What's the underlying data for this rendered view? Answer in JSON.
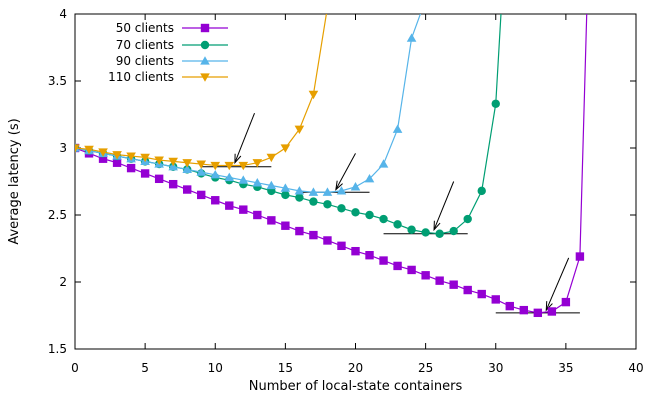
{
  "chart_data": {
    "type": "line",
    "xlabel": "Number of local-state containers",
    "ylabel": "Average latency (s)",
    "xlim": [
      0,
      40
    ],
    "ylim": [
      1.5,
      4
    ],
    "x_ticks": [
      "0",
      "5",
      "10",
      "15",
      "20",
      "25",
      "30",
      "35",
      "40"
    ],
    "y_ticks": [
      "1.5",
      "2",
      "2.5",
      "3",
      "3.5",
      "4"
    ],
    "grid": false,
    "legend_position": "top-left",
    "series": [
      {
        "name": "50 clients",
        "color": "#9400d3",
        "marker": "square",
        "x": [
          0,
          1,
          2,
          3,
          4,
          5,
          6,
          7,
          8,
          9,
          10,
          11,
          12,
          13,
          14,
          15,
          16,
          17,
          18,
          19,
          20,
          21,
          22,
          23,
          24,
          25,
          26,
          27,
          28,
          29,
          30,
          31,
          32,
          33,
          34,
          35,
          36,
          36.5
        ],
        "y": [
          3.0,
          2.96,
          2.92,
          2.89,
          2.85,
          2.81,
          2.77,
          2.73,
          2.69,
          2.65,
          2.61,
          2.57,
          2.54,
          2.5,
          2.46,
          2.42,
          2.38,
          2.35,
          2.31,
          2.27,
          2.23,
          2.2,
          2.16,
          2.12,
          2.09,
          2.05,
          2.01,
          1.98,
          1.94,
          1.91,
          1.87,
          1.82,
          1.79,
          1.77,
          1.78,
          1.85,
          2.19,
          4.05
        ]
      },
      {
        "name": "70 clients",
        "color": "#009e73",
        "marker": "circle",
        "x": [
          0,
          1,
          2,
          3,
          4,
          5,
          6,
          7,
          8,
          9,
          10,
          11,
          12,
          13,
          14,
          15,
          16,
          17,
          18,
          19,
          20,
          21,
          22,
          23,
          24,
          25,
          26,
          27,
          28,
          29,
          30,
          30.4
        ],
        "y": [
          3.0,
          2.98,
          2.96,
          2.94,
          2.92,
          2.9,
          2.88,
          2.86,
          2.84,
          2.81,
          2.78,
          2.76,
          2.73,
          2.71,
          2.68,
          2.65,
          2.63,
          2.6,
          2.58,
          2.55,
          2.52,
          2.5,
          2.47,
          2.43,
          2.39,
          2.37,
          2.36,
          2.38,
          2.47,
          2.68,
          3.33,
          4.05
        ]
      },
      {
        "name": "90 clients",
        "color": "#56b4e9",
        "marker": "triangle-up",
        "x": [
          0,
          1,
          2,
          3,
          4,
          5,
          6,
          7,
          8,
          9,
          10,
          11,
          12,
          13,
          14,
          15,
          16,
          17,
          18,
          19,
          20,
          21,
          22,
          23,
          24,
          24.8
        ],
        "y": [
          3.0,
          2.98,
          2.96,
          2.94,
          2.92,
          2.9,
          2.88,
          2.86,
          2.84,
          2.82,
          2.8,
          2.78,
          2.76,
          2.74,
          2.72,
          2.7,
          2.68,
          2.67,
          2.67,
          2.68,
          2.71,
          2.77,
          2.88,
          3.14,
          3.82,
          4.05
        ]
      },
      {
        "name": "110 clients",
        "color": "#e69f00",
        "marker": "triangle-down",
        "x": [
          0,
          1,
          2,
          3,
          4,
          5,
          6,
          7,
          8,
          9,
          10,
          11,
          12,
          13,
          14,
          15,
          16,
          17,
          18
        ],
        "y": [
          3.0,
          2.99,
          2.97,
          2.95,
          2.94,
          2.93,
          2.91,
          2.9,
          2.89,
          2.88,
          2.87,
          2.87,
          2.87,
          2.89,
          2.93,
          3.0,
          3.14,
          3.4,
          4.05
        ]
      }
    ],
    "annotations": [
      {
        "type": "arrow",
        "from": [
          12.8,
          3.26
        ],
        "to": [
          11.4,
          2.89
        ]
      },
      {
        "type": "hline",
        "x": [
          9,
          14
        ],
        "y": 2.86
      },
      {
        "type": "arrow",
        "from": [
          20.0,
          2.96
        ],
        "to": [
          18.6,
          2.69
        ]
      },
      {
        "type": "hline",
        "x": [
          16,
          21
        ],
        "y": 2.67
      },
      {
        "type": "arrow",
        "from": [
          27.0,
          2.75
        ],
        "to": [
          25.6,
          2.39
        ]
      },
      {
        "type": "hline",
        "x": [
          22,
          28
        ],
        "y": 2.36
      },
      {
        "type": "arrow",
        "from": [
          35.2,
          2.18
        ],
        "to": [
          33.6,
          1.79
        ]
      },
      {
        "type": "hline",
        "x": [
          30,
          36
        ],
        "y": 1.77
      }
    ]
  }
}
